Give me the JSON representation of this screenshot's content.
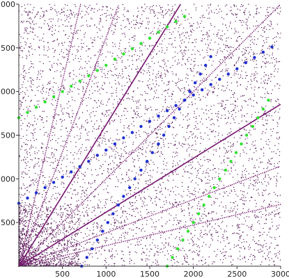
{
  "chart_data": {
    "type": "scatter",
    "title": "",
    "xlabel": "",
    "ylabel": "",
    "xlim": [
      0,
      3000
    ],
    "ylim": [
      0,
      3000
    ],
    "x_ticks": [
      500,
      1000,
      1500,
      2000,
      2500,
      3000
    ],
    "x_tick_labels": [
      "500",
      "1000",
      "1500",
      "2000",
      "2500",
      "3000"
    ],
    "y_ticks": [
      500,
      1000,
      1500,
      2000,
      2500,
      3000
    ],
    "y_tick_labels": [
      "500",
      "1000",
      "1500",
      "2000",
      "2500",
      "3000"
    ],
    "grid": false,
    "legend": "none",
    "colors": {
      "background_points": "#5b1f5a",
      "ray_points": "#7a1a73",
      "blue_series": "#1f2fd0",
      "green_series": "#33e233",
      "axis": "#333333"
    },
    "background_points": {
      "description_count": 6000,
      "range": [
        0,
        3000
      ],
      "density": "denser near origin"
    },
    "rays": [
      {
        "slope": 0.236,
        "style": "dotted"
      },
      {
        "slope": 0.382,
        "style": "dotted"
      },
      {
        "slope": 0.618,
        "style": "solid"
      },
      {
        "slope": 1.0,
        "style": "dotted"
      },
      {
        "slope": 1.618,
        "style": "solid"
      },
      {
        "slope": 2.618,
        "style": "dotted"
      },
      {
        "slope": 4.236,
        "style": "dotted"
      }
    ],
    "series": [
      {
        "color_key": "blue_series",
        "points": [
          [
            0,
            720
          ],
          [
            100,
            780
          ],
          [
            200,
            840
          ],
          [
            300,
            900
          ],
          [
            400,
            960
          ],
          [
            500,
            1020
          ],
          [
            600,
            1080
          ],
          [
            700,
            1140
          ],
          [
            800,
            1200
          ],
          [
            900,
            1270
          ],
          [
            1000,
            1330
          ],
          [
            1100,
            1400
          ],
          [
            1200,
            1470
          ],
          [
            1300,
            1530
          ],
          [
            1400,
            1600
          ],
          [
            1500,
            1660
          ],
          [
            1600,
            1720
          ],
          [
            1700,
            1780
          ],
          [
            1800,
            1840
          ],
          [
            1900,
            1900
          ],
          [
            2000,
            1960
          ],
          [
            2100,
            2020
          ],
          [
            2200,
            2080
          ],
          [
            2300,
            2140
          ],
          [
            2400,
            2200
          ],
          [
            2500,
            2260
          ],
          [
            2600,
            2330
          ],
          [
            2700,
            2390
          ],
          [
            2800,
            2450
          ],
          [
            2900,
            2510
          ]
        ]
      },
      {
        "color_key": "blue_series",
        "points": [
          [
            720,
            0
          ],
          [
            780,
            100
          ],
          [
            840,
            200
          ],
          [
            900,
            300
          ],
          [
            960,
            400
          ],
          [
            1020,
            500
          ],
          [
            1080,
            600
          ],
          [
            1140,
            700
          ],
          [
            1200,
            800
          ],
          [
            1270,
            900
          ],
          [
            1330,
            1000
          ],
          [
            1400,
            1100
          ],
          [
            1470,
            1200
          ],
          [
            1530,
            1300
          ],
          [
            1600,
            1400
          ],
          [
            1660,
            1500
          ],
          [
            1720,
            1600
          ],
          [
            1780,
            1700
          ],
          [
            1840,
            1800
          ],
          [
            1900,
            1900
          ],
          [
            1960,
            2000
          ],
          [
            2020,
            2100
          ],
          [
            2080,
            2200
          ],
          [
            2140,
            2300
          ],
          [
            2200,
            2400
          ]
        ]
      },
      {
        "color_key": "green_series",
        "points": [
          [
            0,
            1700
          ],
          [
            100,
            1760
          ],
          [
            200,
            1820
          ],
          [
            300,
            1880
          ],
          [
            400,
            1940
          ],
          [
            500,
            2000
          ],
          [
            600,
            2060
          ],
          [
            700,
            2120
          ],
          [
            800,
            2180
          ],
          [
            900,
            2240
          ],
          [
            1000,
            2300
          ],
          [
            1100,
            2370
          ],
          [
            1200,
            2430
          ],
          [
            1300,
            2490
          ],
          [
            1400,
            2550
          ],
          [
            1500,
            2610
          ],
          [
            1600,
            2680
          ],
          [
            1700,
            2740
          ],
          [
            1800,
            2800
          ],
          [
            1900,
            2860
          ]
        ]
      },
      {
        "color_key": "green_series",
        "points": [
          [
            1700,
            0
          ],
          [
            1760,
            100
          ],
          [
            1820,
            200
          ],
          [
            1880,
            300
          ],
          [
            1940,
            400
          ],
          [
            2000,
            500
          ],
          [
            2060,
            600
          ],
          [
            2120,
            700
          ],
          [
            2180,
            800
          ],
          [
            2240,
            900
          ],
          [
            2300,
            1000
          ],
          [
            2370,
            1100
          ],
          [
            2430,
            1200
          ],
          [
            2490,
            1300
          ],
          [
            2550,
            1400
          ],
          [
            2610,
            1500
          ],
          [
            2680,
            1600
          ],
          [
            2740,
            1700
          ],
          [
            2800,
            1800
          ],
          [
            2860,
            1900
          ]
        ]
      }
    ]
  }
}
